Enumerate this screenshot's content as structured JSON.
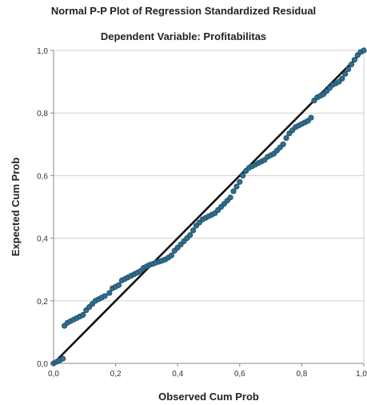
{
  "chart_data": {
    "type": "scatter",
    "title": "Normal P-P Plot of Regression Standardized Residual",
    "subtitle": "Dependent Variable: Profitabilitas",
    "xlabel": "Observed Cum Prob",
    "ylabel": "Expected Cum Prob",
    "xlim": [
      0,
      1
    ],
    "ylim": [
      0,
      1
    ],
    "x_ticks": [
      "0,0",
      "0,2",
      "0,4",
      "0,6",
      "0,8",
      "1,0"
    ],
    "y_ticks": [
      "0,0",
      "0,2",
      "0,4",
      "0,6",
      "0,8",
      "1,0"
    ],
    "grid": "horizontal",
    "reference_line": [
      [
        0,
        0
      ],
      [
        1,
        1
      ]
    ],
    "colors": {
      "points": "#2e6e8e",
      "point_edge": "#1d4a63",
      "line": "#111111",
      "grid": "#d0d0d0"
    },
    "points": [
      [
        0.0,
        0.0
      ],
      [
        0.01,
        0.005
      ],
      [
        0.02,
        0.01
      ],
      [
        0.03,
        0.015
      ],
      [
        0.035,
        0.12
      ],
      [
        0.045,
        0.13
      ],
      [
        0.055,
        0.135
      ],
      [
        0.065,
        0.14
      ],
      [
        0.075,
        0.145
      ],
      [
        0.085,
        0.15
      ],
      [
        0.095,
        0.155
      ],
      [
        0.105,
        0.17
      ],
      [
        0.115,
        0.18
      ],
      [
        0.125,
        0.19
      ],
      [
        0.135,
        0.2
      ],
      [
        0.145,
        0.205
      ],
      [
        0.155,
        0.21
      ],
      [
        0.165,
        0.215
      ],
      [
        0.18,
        0.225
      ],
      [
        0.19,
        0.24
      ],
      [
        0.2,
        0.245
      ],
      [
        0.21,
        0.25
      ],
      [
        0.22,
        0.265
      ],
      [
        0.23,
        0.27
      ],
      [
        0.24,
        0.275
      ],
      [
        0.25,
        0.28
      ],
      [
        0.26,
        0.285
      ],
      [
        0.27,
        0.29
      ],
      [
        0.28,
        0.295
      ],
      [
        0.29,
        0.305
      ],
      [
        0.3,
        0.31
      ],
      [
        0.31,
        0.315
      ],
      [
        0.32,
        0.318
      ],
      [
        0.33,
        0.322
      ],
      [
        0.34,
        0.325
      ],
      [
        0.35,
        0.328
      ],
      [
        0.36,
        0.332
      ],
      [
        0.37,
        0.338
      ],
      [
        0.38,
        0.345
      ],
      [
        0.39,
        0.36
      ],
      [
        0.4,
        0.37
      ],
      [
        0.41,
        0.38
      ],
      [
        0.42,
        0.39
      ],
      [
        0.43,
        0.4
      ],
      [
        0.44,
        0.41
      ],
      [
        0.45,
        0.425
      ],
      [
        0.46,
        0.44
      ],
      [
        0.47,
        0.45
      ],
      [
        0.48,
        0.46
      ],
      [
        0.49,
        0.465
      ],
      [
        0.5,
        0.47
      ],
      [
        0.51,
        0.475
      ],
      [
        0.52,
        0.48
      ],
      [
        0.53,
        0.49
      ],
      [
        0.54,
        0.5
      ],
      [
        0.55,
        0.51
      ],
      [
        0.56,
        0.52
      ],
      [
        0.57,
        0.53
      ],
      [
        0.58,
        0.55
      ],
      [
        0.59,
        0.565
      ],
      [
        0.6,
        0.58
      ],
      [
        0.61,
        0.6
      ],
      [
        0.62,
        0.615
      ],
      [
        0.63,
        0.625
      ],
      [
        0.64,
        0.63
      ],
      [
        0.65,
        0.635
      ],
      [
        0.66,
        0.64
      ],
      [
        0.67,
        0.645
      ],
      [
        0.68,
        0.65
      ],
      [
        0.69,
        0.66
      ],
      [
        0.7,
        0.665
      ],
      [
        0.71,
        0.67
      ],
      [
        0.72,
        0.68
      ],
      [
        0.73,
        0.69
      ],
      [
        0.74,
        0.7
      ],
      [
        0.75,
        0.72
      ],
      [
        0.76,
        0.735
      ],
      [
        0.77,
        0.745
      ],
      [
        0.78,
        0.755
      ],
      [
        0.79,
        0.76
      ],
      [
        0.8,
        0.765
      ],
      [
        0.81,
        0.77
      ],
      [
        0.82,
        0.775
      ],
      [
        0.83,
        0.785
      ],
      [
        0.84,
        0.84
      ],
      [
        0.85,
        0.85
      ],
      [
        0.86,
        0.855
      ],
      [
        0.87,
        0.86
      ],
      [
        0.88,
        0.87
      ],
      [
        0.89,
        0.88
      ],
      [
        0.9,
        0.89
      ],
      [
        0.91,
        0.895
      ],
      [
        0.92,
        0.9
      ],
      [
        0.93,
        0.91
      ],
      [
        0.94,
        0.925
      ],
      [
        0.95,
        0.94
      ],
      [
        0.96,
        0.955
      ],
      [
        0.97,
        0.97
      ],
      [
        0.98,
        0.985
      ],
      [
        0.99,
        0.995
      ],
      [
        1.0,
        1.0
      ]
    ]
  }
}
